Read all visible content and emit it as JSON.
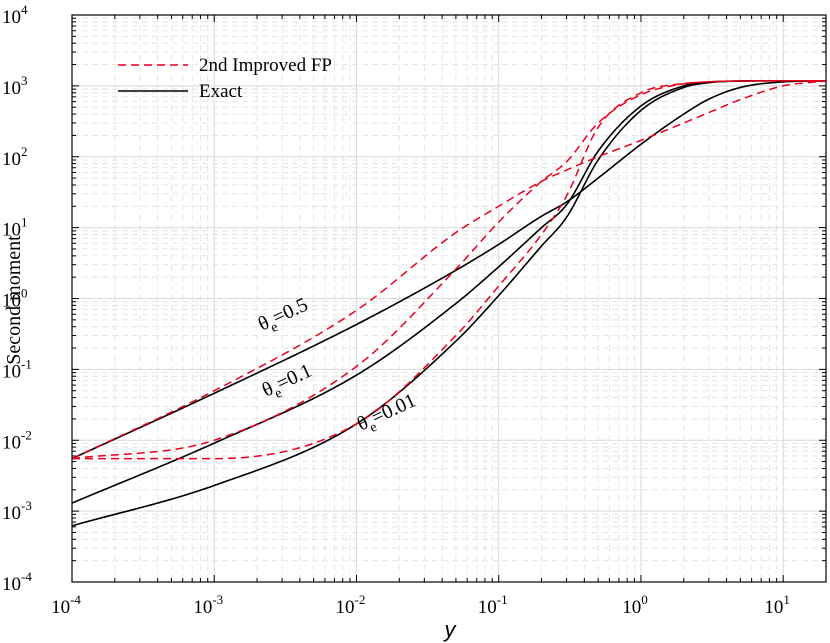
{
  "chart_data": {
    "type": "line",
    "xlabel": "y",
    "ylabel": "Second moment",
    "x_scale": "log",
    "y_scale": "log",
    "xlim": [
      0.0001,
      20
    ],
    "ylim": [
      0.0001,
      10000
    ],
    "grid": true,
    "legend_position": "top-left",
    "x_ticks": [
      {
        "base": "10",
        "exp": "-4"
      },
      {
        "base": "10",
        "exp": "-3"
      },
      {
        "base": "10",
        "exp": "-2"
      },
      {
        "base": "10",
        "exp": "-1"
      },
      {
        "base": "10",
        "exp": "0"
      },
      {
        "base": "10",
        "exp": "1"
      }
    ],
    "y_ticks": [
      {
        "base": "10",
        "exp": "-4"
      },
      {
        "base": "10",
        "exp": "-3"
      },
      {
        "base": "10",
        "exp": "-2"
      },
      {
        "base": "10",
        "exp": "-1"
      },
      {
        "base": "10",
        "exp": "0"
      },
      {
        "base": "10",
        "exp": "1"
      },
      {
        "base": "10",
        "exp": "2"
      },
      {
        "base": "10",
        "exp": "3"
      },
      {
        "base": "10",
        "exp": "4"
      }
    ],
    "legend": [
      {
        "label": "2nd Improved FP",
        "color": "#e8001c",
        "dash": "dashed"
      },
      {
        "label": "Exact",
        "color": "#000000",
        "dash": "solid"
      }
    ],
    "annotations": [
      {
        "greek": "θ",
        "sub": "e",
        "rest": "=0.5"
      },
      {
        "greek": "θ",
        "sub": "e",
        "rest": "=0.1"
      },
      {
        "greek": "θ",
        "sub": "e",
        "rest": "=0.01"
      }
    ],
    "series": [
      {
        "name": "Exact",
        "theta_e": 0.5,
        "color": "#000000",
        "dash": "solid",
        "x": [
          0.0001,
          0.001,
          0.01,
          0.05,
          0.1,
          0.2,
          0.3,
          0.5,
          1,
          2,
          3,
          5,
          10,
          20
        ],
        "y": [
          0.0055,
          0.046,
          0.43,
          2.5,
          5.8,
          14.5,
          23,
          50,
          150,
          400,
          650,
          950,
          1140,
          1180
        ]
      },
      {
        "name": "Exact",
        "theta_e": 0.1,
        "color": "#000000",
        "dash": "solid",
        "x": [
          0.0001,
          0.001,
          0.01,
          0.05,
          0.1,
          0.2,
          0.3,
          0.5,
          1,
          2,
          3,
          5,
          10,
          20
        ],
        "y": [
          0.0013,
          0.0091,
          0.083,
          0.85,
          2.8,
          10,
          21,
          120,
          520,
          1000,
          1130,
          1170,
          1180,
          1180
        ]
      },
      {
        "name": "Exact",
        "theta_e": 0.01,
        "color": "#000000",
        "dash": "solid",
        "x": [
          0.0001,
          0.001,
          0.01,
          0.05,
          0.1,
          0.2,
          0.3,
          0.5,
          1,
          2,
          3,
          5,
          10,
          20
        ],
        "y": [
          0.00062,
          0.0023,
          0.017,
          0.25,
          1.1,
          5.5,
          14,
          90,
          450,
          950,
          1110,
          1170,
          1180,
          1180
        ]
      },
      {
        "name": "2nd Improved FP",
        "theta_e": 0.5,
        "color": "#e8001c",
        "dash": "dashed",
        "x": [
          0.0001,
          0.001,
          0.01,
          0.05,
          0.1,
          0.2,
          0.3,
          0.5,
          1,
          2,
          3,
          5,
          10,
          20
        ],
        "y": [
          0.0055,
          0.05,
          0.68,
          8.5,
          20,
          45,
          65,
          100,
          170,
          300,
          420,
          640,
          1000,
          1170
        ]
      },
      {
        "name": "2nd Improved FP",
        "theta_e": 0.1,
        "color": "#e8001c",
        "dash": "dashed",
        "x": [
          0.0001,
          0.001,
          0.01,
          0.05,
          0.1,
          0.2,
          0.3,
          0.5,
          1,
          2,
          3,
          5,
          10,
          20
        ],
        "y": [
          0.0055,
          0.01,
          0.11,
          2.6,
          12,
          45,
          85,
          300,
          750,
          1070,
          1140,
          1170,
          1180,
          1180
        ]
      },
      {
        "name": "2nd Improved FP",
        "theta_e": 0.01,
        "color": "#e8001c",
        "dash": "dashed",
        "x": [
          0.0001,
          0.001,
          0.01,
          0.05,
          0.1,
          0.2,
          0.3,
          0.5,
          1,
          2,
          3,
          5,
          10,
          20
        ],
        "y": [
          0.0055,
          0.0055,
          0.017,
          0.3,
          1.5,
          8,
          28,
          260,
          800,
          1080,
          1140,
          1170,
          1180,
          1180
        ]
      }
    ]
  }
}
